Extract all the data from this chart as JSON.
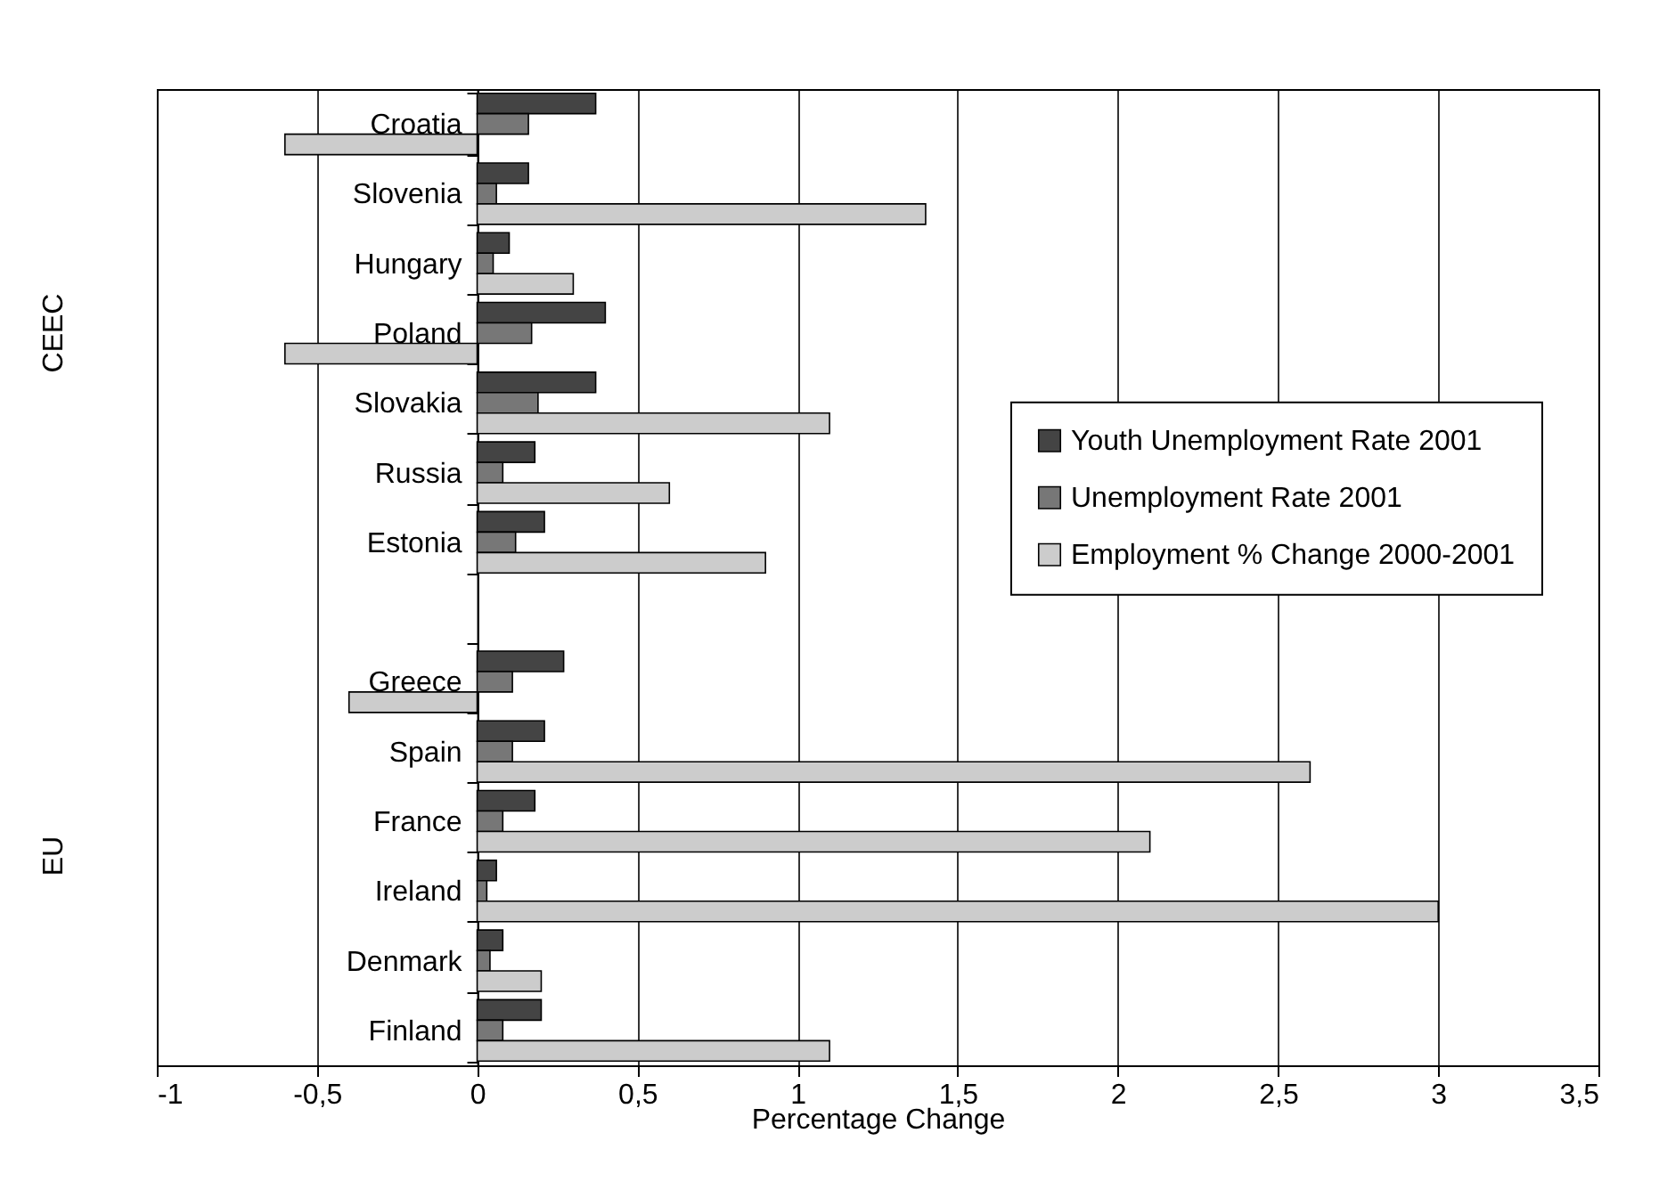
{
  "chart_data": {
    "type": "bar",
    "orientation": "horizontal",
    "xlabel": "Percentage Change",
    "categories": [
      "Croatia",
      "Slovenia",
      "Hungary",
      "Poland",
      "Slovakia",
      "Russia",
      "Estonia",
      null,
      "Greece",
      "Spain",
      "France",
      "Ireland",
      "Denmark",
      "Finland"
    ],
    "series": [
      {
        "name": "Youth Unemployment Rate  2001",
        "color": "#444444",
        "values": [
          0.37,
          0.16,
          0.1,
          0.4,
          0.37,
          0.18,
          0.21,
          null,
          0.27,
          0.21,
          0.18,
          0.06,
          0.08,
          0.2
        ]
      },
      {
        "name": "Unemployment Rate 2001",
        "color": "#777777",
        "values": [
          0.16,
          0.06,
          0.05,
          0.17,
          0.19,
          0.08,
          0.12,
          null,
          0.11,
          0.11,
          0.08,
          0.03,
          0.04,
          0.08
        ]
      },
      {
        "name": "Employment % Change 2000-2001",
        "color": "#cccccc",
        "values": [
          -0.6,
          1.4,
          0.3,
          -0.6,
          1.1,
          0.6,
          0.9,
          null,
          -0.4,
          2.6,
          2.1,
          3.0,
          0.2,
          1.1
        ]
      }
    ],
    "xlim": [
      -1,
      3.5
    ],
    "xticks": [
      -1,
      {
        "value": -0.5,
        "label": "-0,5"
      },
      0,
      {
        "value": 0.5,
        "label": "0,5"
      },
      1,
      {
        "value": 1.5,
        "label": "1,5"
      },
      2,
      {
        "value": 2.5,
        "label": "2,5"
      },
      3,
      {
        "value": 3.5,
        "label": "3,5"
      }
    ],
    "grid": "x",
    "legend": "right",
    "annotations": [
      "CEEC",
      "EU"
    ]
  }
}
